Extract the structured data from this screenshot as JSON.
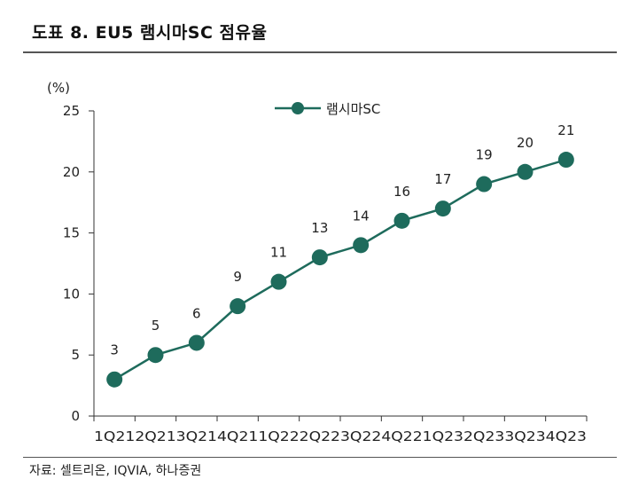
{
  "header": {
    "title": "도표 8. EU5 램시마SC 점유율"
  },
  "footer": {
    "source": "자료: 셀트리온, IQVIA, 하나증권"
  },
  "colors": {
    "series": "#1e6b5c",
    "axis": "#333333",
    "rule": "#555555"
  },
  "chart_data": {
    "type": "line",
    "title": "도표 8. EU5 램시마SC 점유율",
    "xlabel": "",
    "ylabel": "(%)",
    "ylim": [
      0,
      25
    ],
    "yticks": [
      0,
      5,
      10,
      15,
      20,
      25
    ],
    "grid": false,
    "legend_position": "top-center",
    "categories": [
      "1Q21",
      "2Q21",
      "3Q21",
      "4Q21",
      "1Q22",
      "2Q22",
      "3Q22",
      "4Q22",
      "1Q23",
      "2Q23",
      "3Q23",
      "4Q23"
    ],
    "series": [
      {
        "name": "램시마SC",
        "values": [
          3,
          5,
          6,
          9,
          11,
          13,
          14,
          16,
          17,
          19,
          20,
          21
        ]
      }
    ]
  }
}
